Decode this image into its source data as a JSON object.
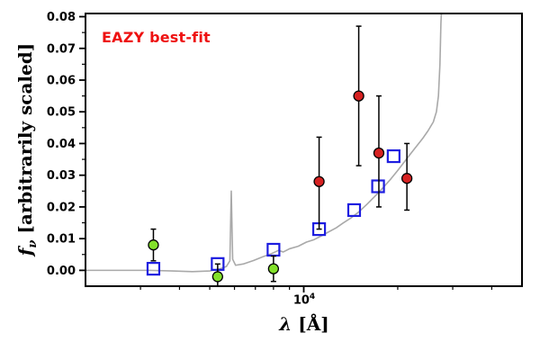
{
  "figure": {
    "background": "#ffffff",
    "annotation": {
      "text": "EAZY best-fit",
      "color": "#ee1111"
    }
  },
  "chart_data": {
    "type": "line+scatter",
    "title": "",
    "xlabel": {
      "math": "λ",
      "rest": " [Å]"
    },
    "ylabel": {
      "math": "f",
      "sub": "ν",
      "rest": " [arbitrarily scaled]"
    },
    "x_scale": "log",
    "xlim": [
      2000,
      50000
    ],
    "ylim": [
      -0.005,
      0.081
    ],
    "grid": false,
    "legend": null,
    "x_major_ticks": [
      10000
    ],
    "x_major_tick_labels": [
      {
        "base": "10",
        "exp": "4"
      }
    ],
    "x_minor_ticks": [
      3000,
      4000,
      5000,
      6000,
      7000,
      8000,
      9000,
      20000,
      30000,
      40000
    ],
    "y_major_ticks": [
      0,
      0.01,
      0.02,
      0.03,
      0.04,
      0.05,
      0.06,
      0.07,
      0.08
    ],
    "y_minor_ticks": [
      0.005,
      0.015,
      0.025,
      0.035,
      0.045,
      0.055,
      0.065,
      0.075
    ],
    "series": [
      {
        "name": "best-fit-model-spectrum",
        "kind": "line",
        "color": "#a9a9a9",
        "points": [
          [
            2000,
            0
          ],
          [
            2600,
            0
          ],
          [
            3200,
            0
          ],
          [
            3800,
            -0.0002
          ],
          [
            4400,
            -0.0004
          ],
          [
            5000,
            -0.0002
          ],
          [
            5400,
            0.0005
          ],
          [
            5650,
            0.0012
          ],
          [
            5800,
            0.003
          ],
          [
            5860,
            0.025
          ],
          [
            5920,
            0.0035
          ],
          [
            6050,
            0.0016
          ],
          [
            6400,
            0.002
          ],
          [
            6900,
            0.0031
          ],
          [
            7400,
            0.0043
          ],
          [
            7900,
            0.0053
          ],
          [
            8300,
            0.0063
          ],
          [
            8600,
            0.0058
          ],
          [
            9000,
            0.0068
          ],
          [
            9600,
            0.0076
          ],
          [
            10200,
            0.0089
          ],
          [
            10800,
            0.0097
          ],
          [
            11400,
            0.0109
          ],
          [
            12000,
            0.0121
          ],
          [
            12700,
            0.0134
          ],
          [
            13400,
            0.015
          ],
          [
            14200,
            0.0166
          ],
          [
            15000,
            0.0184
          ],
          [
            16000,
            0.021
          ],
          [
            17000,
            0.0236
          ],
          [
            18000,
            0.0262
          ],
          [
            19000,
            0.0288
          ],
          [
            20000,
            0.0315
          ],
          [
            21000,
            0.0342
          ],
          [
            22000,
            0.0368
          ],
          [
            23000,
            0.0392
          ],
          [
            24000,
            0.0415
          ],
          [
            25000,
            0.044
          ],
          [
            26000,
            0.0468
          ],
          [
            26600,
            0.05
          ],
          [
            27000,
            0.055
          ],
          [
            27300,
            0.065
          ],
          [
            27500,
            0.078
          ],
          [
            27650,
            0.083
          ]
        ]
      },
      {
        "name": "model-photometry-squares",
        "kind": "scatter",
        "marker": "square",
        "size": 13,
        "fill": "none",
        "edge": "#1d1de0",
        "points": [
          [
            3300,
            0.0005
          ],
          [
            5300,
            0.002
          ],
          [
            8000,
            0.0065
          ],
          [
            11200,
            0.013
          ],
          [
            14500,
            0.019
          ],
          [
            17300,
            0.0265
          ],
          [
            19400,
            0.036
          ]
        ]
      },
      {
        "name": "observed-photometry-optical",
        "kind": "scatter",
        "marker": "circle",
        "size": 11,
        "fill": "#82e02a",
        "edge": "#000000",
        "points": [
          [
            3300,
            0.008
          ],
          [
            5300,
            -0.002
          ],
          [
            8000,
            0.0005
          ]
        ],
        "yerr": [
          0.005,
          0.004,
          0.004
        ]
      },
      {
        "name": "observed-photometry-infrared",
        "kind": "scatter",
        "marker": "circle",
        "size": 11,
        "fill": "#d62121",
        "edge": "#000000",
        "points": [
          [
            11200,
            0.028
          ],
          [
            15000,
            0.055
          ],
          [
            17400,
            0.037
          ],
          [
            21400,
            0.029
          ]
        ],
        "yerr_up": [
          0.014,
          0.022,
          0.018,
          0.011
        ],
        "yerr_down": [
          0.015,
          0.022,
          0.017,
          0.01
        ]
      }
    ]
  }
}
